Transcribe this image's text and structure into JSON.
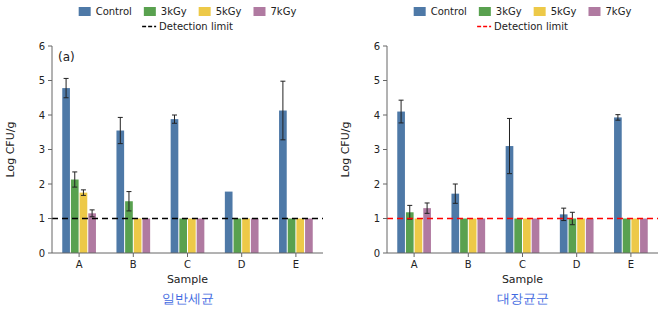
{
  "chart_data": [
    {
      "type": "bar",
      "title": "(a)",
      "xlabel": "Sample",
      "ylabel": "Log CFU/g",
      "annotations": [
        {
          "text": "일반세균",
          "color": "#4169e1"
        }
      ],
      "categories": [
        "A",
        "B",
        "C",
        "D",
        "E"
      ],
      "series": [
        {
          "name": "Control",
          "color": "#4e79a7",
          "values": [
            4.78,
            3.55,
            3.88,
            1.78,
            4.13
          ],
          "errors": [
            0.28,
            0.38,
            0.12,
            0.0,
            0.85
          ]
        },
        {
          "name": "3kGy",
          "color": "#59a14f",
          "values": [
            2.13,
            1.5,
            1.0,
            1.0,
            1.0
          ],
          "errors": [
            0.22,
            0.28,
            0.0,
            0.0,
            0.0
          ]
        },
        {
          "name": "5kGy",
          "color": "#edc948",
          "values": [
            1.75,
            1.0,
            1.0,
            1.0,
            1.0
          ],
          "errors": [
            0.08,
            0.0,
            0.0,
            0.0,
            0.0
          ]
        },
        {
          "name": "7kGy",
          "color": "#b07aa1",
          "values": [
            1.15,
            1.0,
            1.0,
            1.0,
            1.0
          ],
          "errors": [
            0.1,
            0.0,
            0.0,
            0.0,
            0.0
          ]
        }
      ],
      "reference_lines": [
        {
          "name": "Detection limit",
          "value": 1.0,
          "color": "#000000",
          "line_style": "dashed"
        }
      ],
      "ylim": [
        0,
        6
      ],
      "yticks": [
        0,
        1,
        2,
        3,
        4,
        5,
        6
      ],
      "grid": false,
      "legend": "top"
    },
    {
      "type": "bar",
      "xlabel": "Sample",
      "ylabel": "Log CFU/g",
      "annotations": [
        {
          "text": "대장균군",
          "color": "#4169e1"
        }
      ],
      "categories": [
        "A",
        "B",
        "C",
        "D",
        "E"
      ],
      "series": [
        {
          "name": "Control",
          "color": "#4e79a7",
          "values": [
            4.1,
            1.72,
            3.1,
            1.12,
            3.93
          ],
          "errors": [
            0.33,
            0.28,
            0.8,
            0.18,
            0.08
          ]
        },
        {
          "name": "3kGy",
          "color": "#59a14f",
          "values": [
            1.18,
            1.0,
            1.0,
            1.0,
            1.0
          ],
          "errors": [
            0.2,
            0.0,
            0.0,
            0.18,
            0.0
          ]
        },
        {
          "name": "5kGy",
          "color": "#edc948",
          "values": [
            1.0,
            1.0,
            1.0,
            1.0,
            1.0
          ],
          "errors": [
            0.0,
            0.0,
            0.0,
            0.0,
            0.0
          ]
        },
        {
          "name": "7kGy",
          "color": "#b07aa1",
          "values": [
            1.3,
            1.0,
            1.0,
            1.0,
            1.0
          ],
          "errors": [
            0.15,
            0.0,
            0.0,
            0.0,
            0.0
          ]
        }
      ],
      "reference_lines": [
        {
          "name": "Detection limit",
          "value": 1.0,
          "color": "#ff0000",
          "line_style": "dashed"
        }
      ],
      "ylim": [
        0,
        6
      ],
      "yticks": [
        0,
        1,
        2,
        3,
        4,
        5,
        6
      ],
      "grid": false,
      "legend": "top"
    }
  ]
}
